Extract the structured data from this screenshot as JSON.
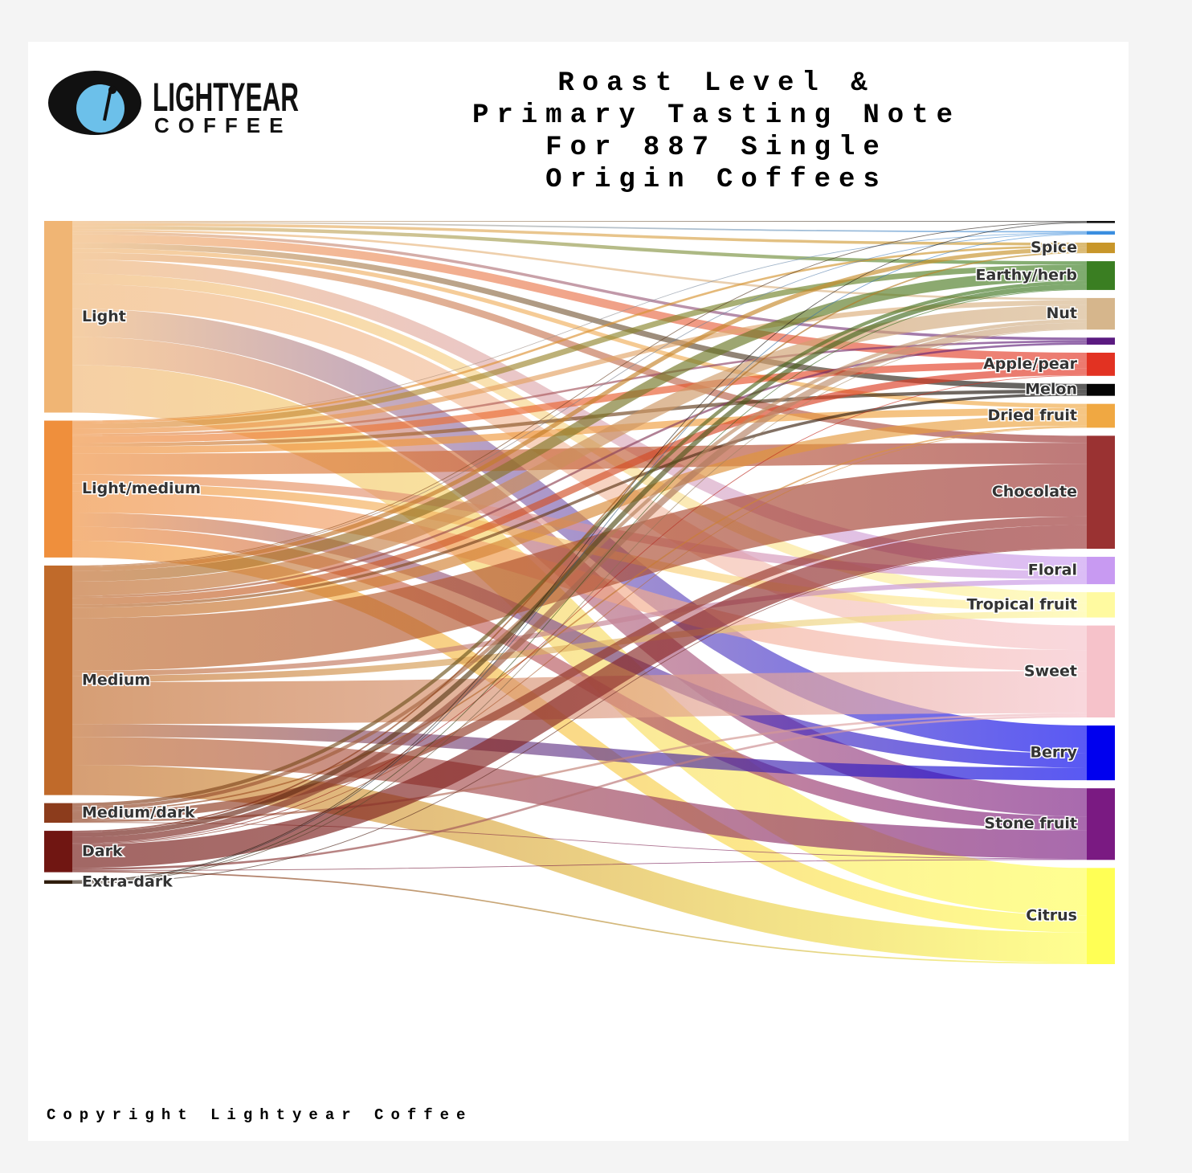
{
  "chart_data": {
    "type": "sankey",
    "title": [
      "Roast Level &",
      "Primary Tasting Note",
      "For 887 Single",
      "Origin Coffees"
    ],
    "sources": [
      {
        "name": "Light",
        "color": "#f0b574"
      },
      {
        "name": "Light/medium",
        "color": "#ef8f3c"
      },
      {
        "name": "Medium",
        "color": "#c06a2a"
      },
      {
        "name": "Medium/dark",
        "color": "#8c3c1c"
      },
      {
        "name": "Dark",
        "color": "#701612"
      },
      {
        "name": "Extra-dark",
        "color": "#2e1c0c"
      }
    ],
    "targets": [
      {
        "name": null,
        "color": "#111111"
      },
      {
        "name": null,
        "color": "#3a8ee0"
      },
      {
        "name": "Spice",
        "color": "#c8962a"
      },
      {
        "name": "Earthy/herb",
        "color": "#3a7e22"
      },
      {
        "name": "Nut",
        "color": "#d6b68c"
      },
      {
        "name": null,
        "color": "#5a1a80"
      },
      {
        "name": "Apple/pear",
        "color": "#e23222"
      },
      {
        "name": "Melon",
        "color": "#050505"
      },
      {
        "name": "Dried fruit",
        "color": "#f0a842"
      },
      {
        "name": "Chocolate",
        "color": "#9a3232"
      },
      {
        "name": "Floral",
        "color": "#c89af2"
      },
      {
        "name": "Tropical fruit",
        "color": "#fffaa0"
      },
      {
        "name": "Sweet",
        "color": "#f6c2ca"
      },
      {
        "name": "Berry",
        "color": "#0000ee"
      },
      {
        "name": "Stone fruit",
        "color": "#7a1a82"
      },
      {
        "name": "Citrus",
        "color": "#ffff55"
      }
    ],
    "flows": [
      [
        1,
        2,
        4,
        5,
        3,
        4,
        12,
        8,
        6,
        10,
        20,
        15,
        35,
        40,
        40,
        68
      ],
      [
        0,
        1,
        3,
        8,
        7,
        3,
        10,
        5,
        10,
        30,
        12,
        12,
        30,
        20,
        20,
        24
      ],
      [
        1,
        1,
        6,
        15,
        20,
        3,
        10,
        4,
        15,
        75,
        7,
        9,
        60,
        18,
        40,
        43
      ],
      [
        0,
        0,
        0,
        5,
        5,
        0,
        0,
        0,
        2,
        12,
        0,
        0,
        3,
        0,
        1,
        0
      ],
      [
        0,
        0,
        2,
        7,
        9,
        0,
        1,
        0,
        1,
        33,
        0,
        0,
        3,
        0,
        1,
        2
      ],
      [
        1,
        1,
        0,
        1,
        1,
        0,
        0,
        0,
        0,
        1,
        0,
        0,
        0,
        0,
        0,
        0
      ]
    ]
  },
  "logo": {
    "name": "LIGHTYEAR",
    "subname": "COFFEE"
  },
  "footer": "Copyright Lightyear Coffee"
}
